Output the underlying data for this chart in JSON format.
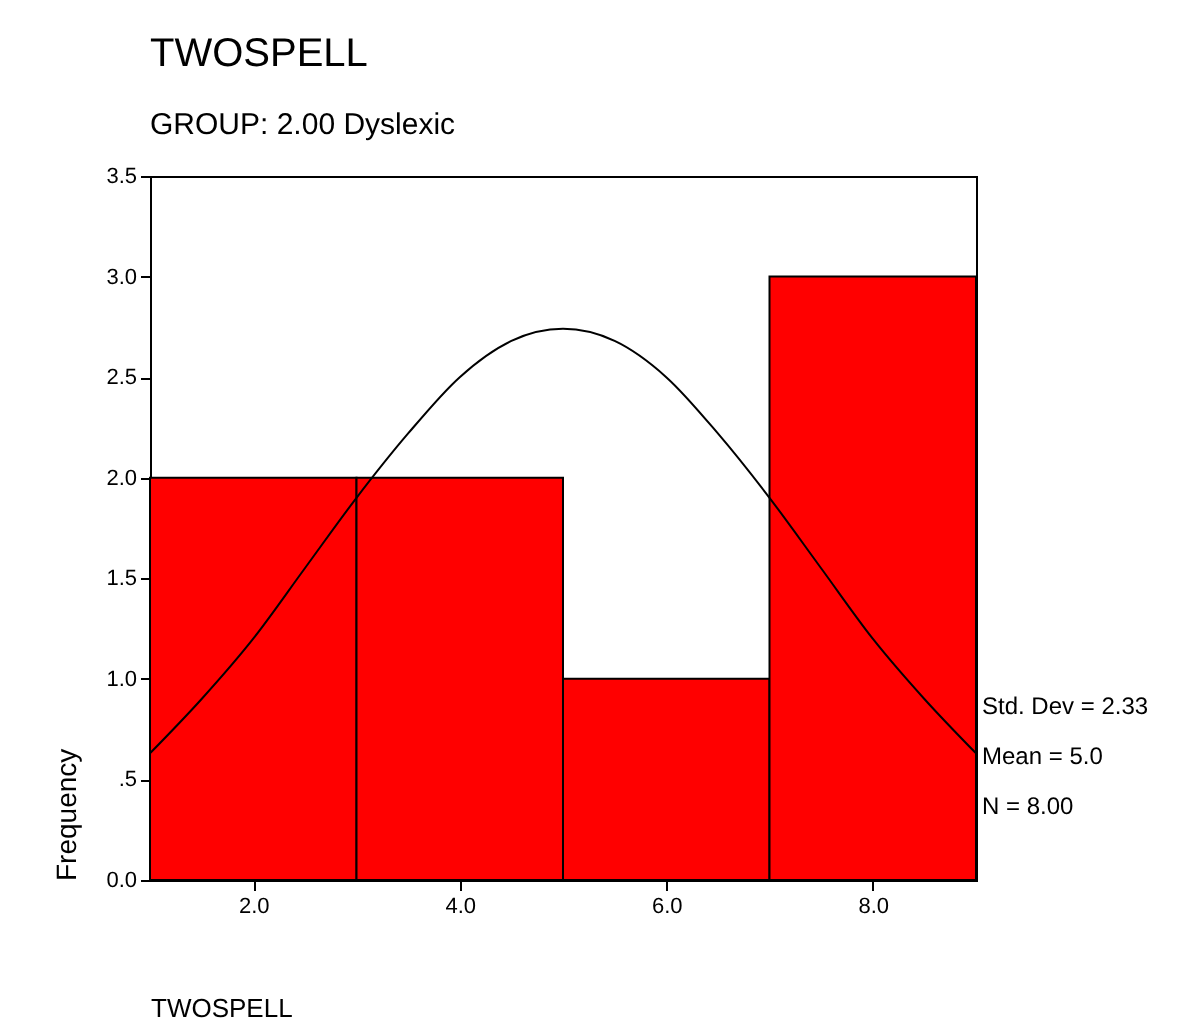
{
  "chart_data": {
    "type": "histogram",
    "title": "TWOSPELL",
    "subtitle": "GROUP:      2.00   Dyslexic",
    "xlabel": "TWOSPELL",
    "ylabel": "Frequency",
    "bins": [
      1,
      3,
      5,
      7,
      9
    ],
    "values": [
      2,
      2,
      1,
      3
    ],
    "color": "#ff0000",
    "series": [
      {
        "type": "line",
        "color": "#000000",
        "x": [
          1,
          1.5,
          2,
          2.5,
          3,
          3.5,
          4,
          4.5,
          5,
          5.5,
          6,
          6.5,
          7,
          7.5,
          8,
          8.5,
          9
        ],
        "values": [
          0.63,
          0.9,
          1.2,
          1.55,
          1.9,
          2.22,
          2.5,
          2.68,
          2.74,
          2.68,
          2.5,
          2.22,
          1.9,
          1.55,
          1.2,
          0.9,
          0.63
        ]
      }
    ],
    "xlim": [
      1,
      9
    ],
    "xticks": [
      {
        "value": 2,
        "label": "2.0"
      },
      {
        "value": 4,
        "label": "4.0"
      },
      {
        "value": 6,
        "label": "6.0"
      },
      {
        "value": 8,
        "label": "8.0"
      }
    ],
    "ylim": [
      0,
      3.5
    ],
    "yticks": [
      {
        "value": 0,
        "label": "0.0"
      },
      {
        "value": 0.5,
        "label": ".5"
      },
      {
        "value": 1,
        "label": "1.0"
      },
      {
        "value": 1.5,
        "label": "1.5"
      },
      {
        "value": 2,
        "label": "2.0"
      },
      {
        "value": 2.5,
        "label": "2.5"
      },
      {
        "value": 3,
        "label": "3.0"
      },
      {
        "value": 3.5,
        "label": "3.5"
      }
    ],
    "grid": false,
    "annotations": [
      "Std. Dev = 2.33",
      "Mean = 5.0",
      "N = 8.00"
    ]
  }
}
